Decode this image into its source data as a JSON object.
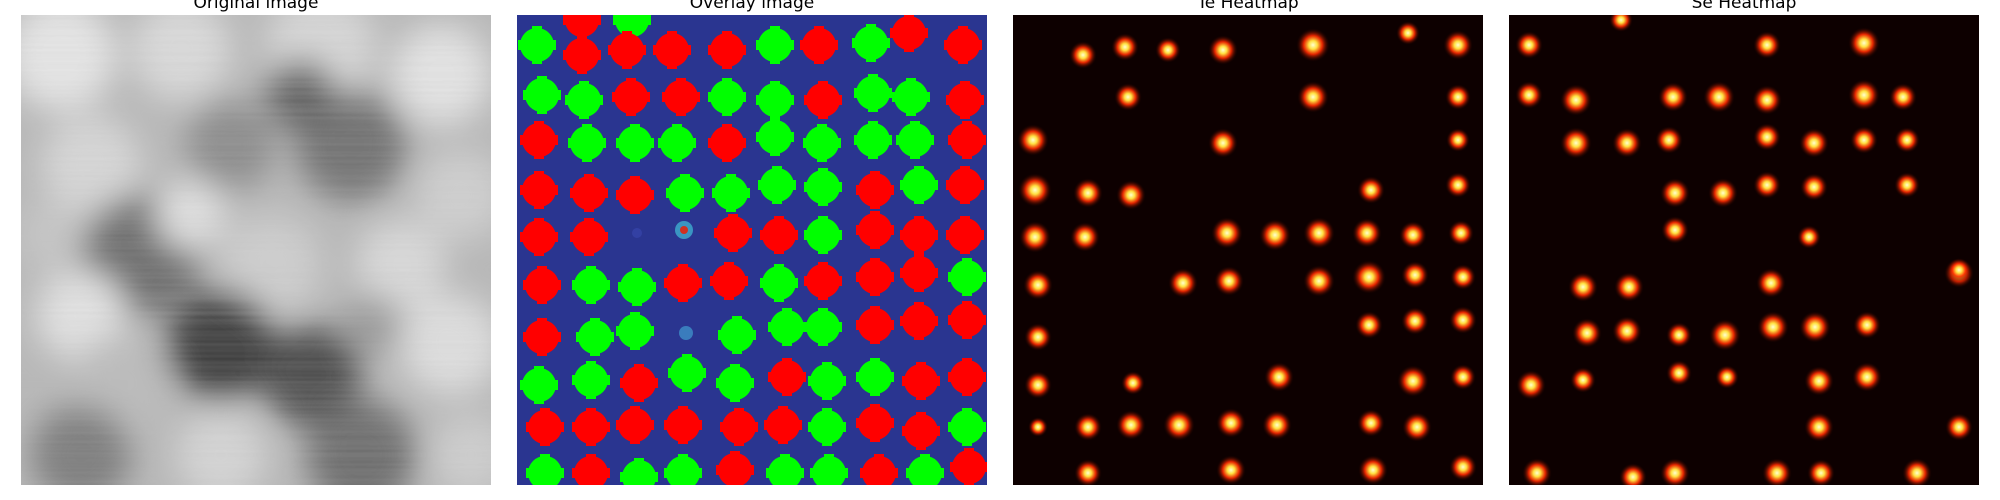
{
  "figure": {
    "panels": [
      {
        "title": "Original image",
        "kind": "grayscale"
      },
      {
        "title": "Overlay image",
        "kind": "overlay"
      },
      {
        "title": "Te Heatmap",
        "kind": "heatmap"
      },
      {
        "title": "Se Heatmap",
        "kind": "heatmap"
      }
    ]
  },
  "colors": {
    "overlay_background": "#2a3590",
    "atom_green": "#00ff00",
    "atom_red": "#ff0000",
    "heatmap_background": "#0d0000",
    "heatmap_glow": "#ff2a00",
    "heatmap_core": "#ffffd0"
  }
}
